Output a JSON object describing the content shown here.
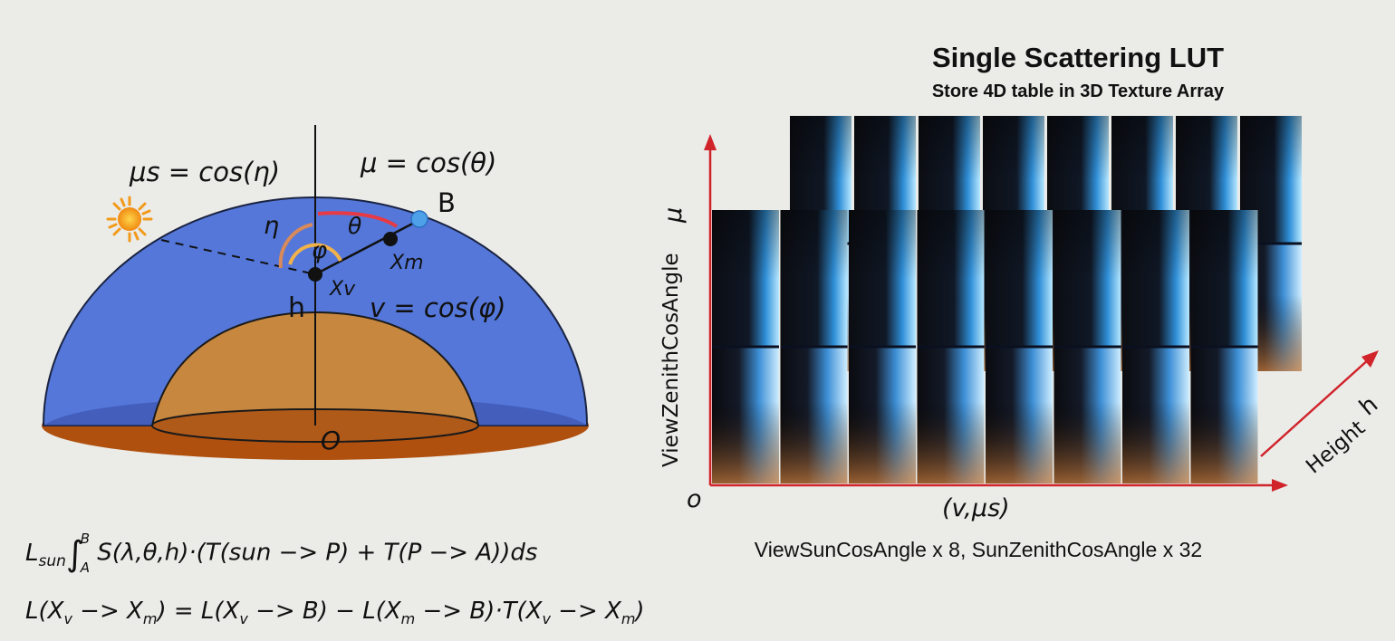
{
  "diagram": {
    "mu_s_label": "μs = cos(η)",
    "mu_label": "μ = cos(θ)",
    "v_label": "v = cos(φ)",
    "point_B": "B",
    "height_label": "h",
    "origin_label": "O",
    "eta": "η",
    "theta": "θ",
    "phi": "φ",
    "x_m": "Xm",
    "x_v": "Xv"
  },
  "equations": {
    "integral": "Lsun∫AB S(λ,θ,h)·(T(sun −> P) + T(P −> A))ds",
    "transfer": "L(Xv −> Xm) = L(Xv −> B) − L(Xm −> B)·T(Xv −> Xm)"
  },
  "lut": {
    "title": "Single Scattering LUT",
    "subtitle": "Store 4D table in 3D Texture Array",
    "y_axis_label": "ViewZenithCosAngle",
    "y_axis_symbol": "μ",
    "origin": "o",
    "x_axis_label": "(v,μs)",
    "depth_axis_label": "Height",
    "depth_axis_symbol": "h",
    "caption": "ViewSunCosAngle x 8, SunZenithCosAngle x 32",
    "front_slices": 8,
    "back_slices": 8
  },
  "colors": {
    "background": "#ebebe8",
    "sky_blue": "#5477d9",
    "ground_brown": "#b0500e",
    "earth_tan": "#c8873e",
    "axis_red": "#d0232a",
    "sun": "#f5a623"
  }
}
